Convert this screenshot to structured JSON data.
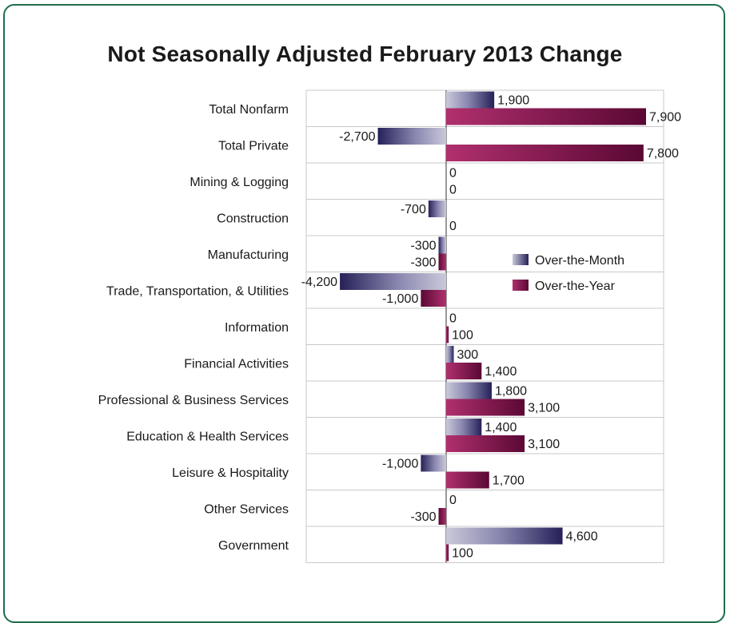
{
  "chart_data": {
    "type": "bar",
    "orientation": "horizontal",
    "title": "Not Seasonally Adjusted February 2013 Change",
    "categories": [
      "Total Nonfarm",
      "Total Private",
      "Mining & Logging",
      "Construction",
      "Manufacturing",
      "Trade, Transportation, & Utilities",
      "Information",
      "Financial Activities",
      "Professional & Business Services",
      "Education & Health Services",
      "Leisure & Hospitality",
      "Other Services",
      "Government"
    ],
    "series": [
      {
        "name": "Over-the-Month",
        "values": [
          1900,
          -2700,
          0,
          -700,
          -300,
          -4200,
          0,
          300,
          1800,
          1400,
          -1000,
          0,
          4600
        ],
        "labels": [
          "1,900",
          "-2,700",
          "0",
          "-700",
          "-300",
          "-4,200",
          "0",
          "300",
          "1,800",
          "1,400",
          "-1,000",
          "0",
          "4,600"
        ],
        "color": "#2e2a63"
      },
      {
        "name": "Over-the-Year",
        "values": [
          7900,
          7800,
          0,
          0,
          -300,
          -1000,
          100,
          1400,
          3100,
          3100,
          1700,
          -300,
          100
        ],
        "labels": [
          "7,900",
          "7,800",
          "0",
          "0",
          "-300",
          "-1,000",
          "100",
          "1,400",
          "3,100",
          "3,100",
          "1,700",
          "-300",
          "100"
        ],
        "color": "#6e0f45"
      }
    ],
    "xlim": [
      -6500,
      10000
    ],
    "legend": "right",
    "grid": true
  }
}
